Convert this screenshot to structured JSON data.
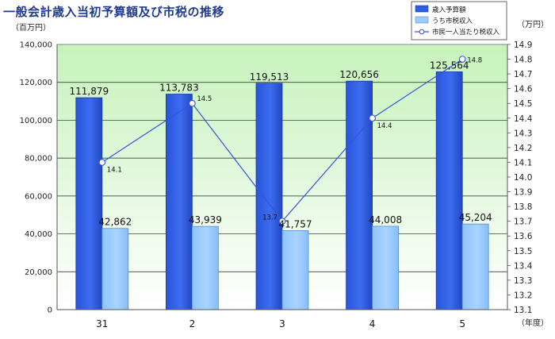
{
  "chart_data": {
    "type": "bar",
    "title": "一般会計歳入当初予算額及び市税の推移",
    "y_left_unit": "（百万円）",
    "y_right_unit": "（万円）",
    "x_unit": "（年度）",
    "categories": [
      "31",
      "2",
      "3",
      "4",
      "5"
    ],
    "ylim_left": [
      0,
      140000
    ],
    "yticks_left": [
      "0",
      "20,000",
      "40,000",
      "60,000",
      "80,000",
      "100,000",
      "120,000",
      "140,000"
    ],
    "ylim_right": [
      13.1,
      14.9
    ],
    "yticks_right": [
      "13.1",
      "13.2",
      "13.3",
      "13.4",
      "13.5",
      "13.6",
      "13.7",
      "13.8",
      "13.9",
      "14.0",
      "14.1",
      "14.2",
      "14.3",
      "14.4",
      "14.5",
      "14.6",
      "14.7",
      "14.8",
      "14.9"
    ],
    "grid": true,
    "legend_position": "top-right",
    "series": [
      {
        "name": "歳入予算額",
        "kind": "bar",
        "axis": "left",
        "color": "#2e5fe0",
        "values": [
          111879,
          113783,
          119513,
          120656,
          125564
        ],
        "labels": [
          "111,879",
          "113,783",
          "119,513",
          "120,656",
          "125,564"
        ]
      },
      {
        "name": "うち市税収入",
        "kind": "bar",
        "axis": "left",
        "color": "#99ccff",
        "values": [
          42862,
          43939,
          41757,
          44008,
          45204
        ],
        "labels": [
          "42,862",
          "43,939",
          "41,757",
          "44,008",
          "45,204"
        ]
      },
      {
        "name": "市民一人当たり税収入",
        "kind": "line",
        "axis": "right",
        "color": "#3355dd",
        "values": [
          14.1,
          14.5,
          13.7,
          14.4,
          14.8
        ],
        "labels": [
          "14.1",
          "14.5",
          "13.7",
          "14.4",
          "14.8"
        ]
      }
    ]
  }
}
